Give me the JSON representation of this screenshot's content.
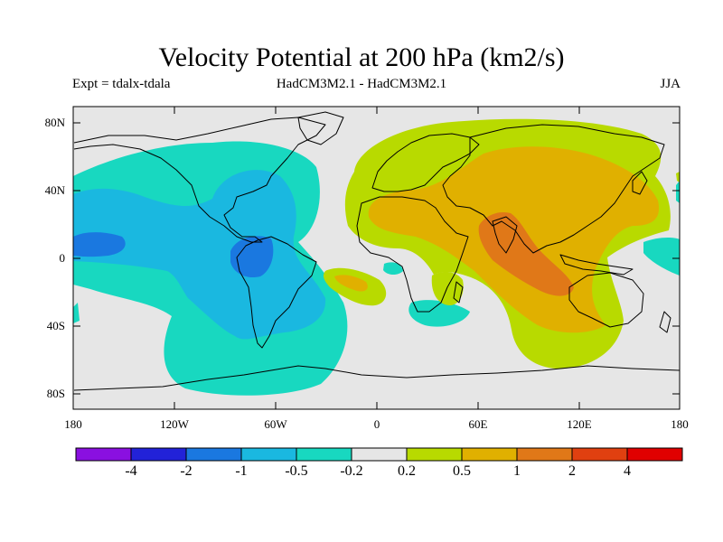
{
  "title": "Velocity Potential at 200 hPa (km2/s)",
  "subtitle_left": "Expt = tdalx-tdala",
  "subtitle_center": "HadCM3M2.1 - HadCM3M2.1",
  "subtitle_right": "JJA",
  "lat_ticks": [
    "80N",
    "40N",
    "0",
    "40S",
    "80S"
  ],
  "lon_ticks": [
    "180",
    "120W",
    "60W",
    "0",
    "60E",
    "120E",
    "180"
  ],
  "colorbar": {
    "colors": [
      "#8a10e0",
      "#2222d8",
      "#1a78e0",
      "#1ab8e0",
      "#18d8c0",
      "#e6e6e6",
      "#b8da00",
      "#e0b000",
      "#e07818",
      "#e04010",
      "#e00000"
    ],
    "labels": [
      "-4",
      "-2",
      "-1",
      "-0.5",
      "-0.2",
      "0.2",
      "0.5",
      "1",
      "2",
      "4"
    ]
  }
}
